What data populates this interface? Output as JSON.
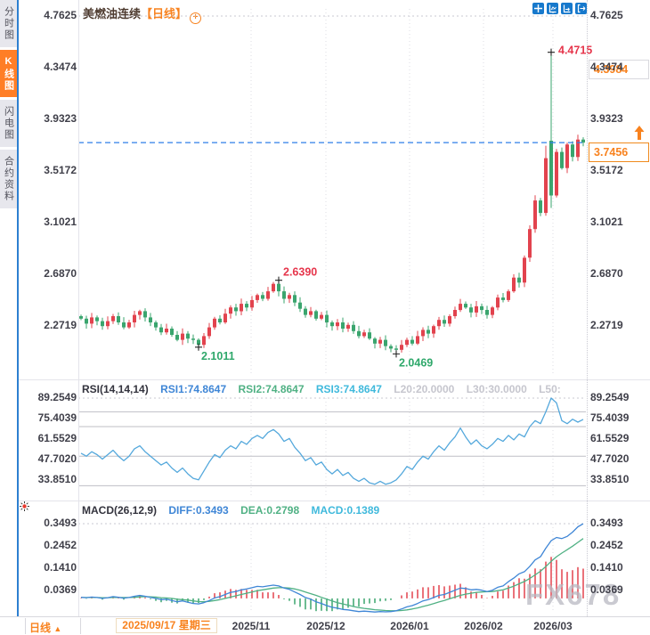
{
  "header": {
    "symbol": "美燃油连续",
    "period": "【日线】",
    "add_indicator": "+"
  },
  "sidebar": {
    "tabs": [
      {
        "label": "分时图",
        "active": false
      },
      {
        "label": "K线图",
        "active": true
      },
      {
        "label": "闪电图",
        "active": false
      },
      {
        "label": "合约资料",
        "active": false
      }
    ]
  },
  "toolbar": {
    "icons": [
      "crosshair-pan",
      "box-zoom",
      "box-zoom-arrow",
      "exit-chart"
    ]
  },
  "colors": {
    "up": "#e2434e",
    "down": "#3aa56e",
    "accent_orange": "#f8821e",
    "icon_blue": "#1779cc",
    "rsi_line": "#54a8dc",
    "diff_blue": "#3f86d6",
    "dea_green": "#50b184",
    "macd_cyan": "#3fb9dc",
    "muted": "#c6c6ce",
    "axis_text": "#3f3f49",
    "grid": "#bfbfc6",
    "dashed_price_line": "#2f7fe8",
    "red_label": "#e6354b",
    "green_label": "#2fa86b"
  },
  "right_axis": {
    "ref_price": "4.3984",
    "last_price": "3.7456"
  },
  "rsi_header": {
    "name": "RSI(14,14,14)",
    "rsi1": "RSI1:74.8647",
    "rsi2": "RSI2:74.8647",
    "rsi3": "RSI3:74.8647",
    "l20": "L20:20.0000",
    "l30": "L30:30.0000",
    "l50": "L50:"
  },
  "macd_header": {
    "name": "MACD(26,12,9)",
    "diff": "DIFF:0.3493",
    "dea": "DEA:0.2798",
    "macd": "MACD:0.1389"
  },
  "bottom_bar": {
    "period": "日线",
    "dropdown_arrow": "▲",
    "crosshair_date": "2025/09/17 星期三",
    "months": [
      {
        "label": "2025/11",
        "x": 282
      },
      {
        "label": "2025/12",
        "x": 366
      },
      {
        "label": "2026/01",
        "x": 460
      },
      {
        "label": "2026/02",
        "x": 543
      },
      {
        "label": "2026/03",
        "x": 621
      }
    ]
  },
  "watermark": "FX678",
  "chart_data": [
    {
      "type": "candlestick",
      "title": "美燃油连续 日线",
      "y_ticks": [
        4.7625,
        4.3474,
        3.9323,
        3.5172,
        3.1021,
        2.687,
        2.2719
      ],
      "ylim": [
        1.95,
        4.82
      ],
      "x_ticks": [
        "2025/11",
        "2025/12",
        "2026/01",
        "2026/02",
        "2026/03"
      ],
      "last_price": 3.7456,
      "ref_price": 4.3984,
      "first_open": 2.35,
      "closes": [
        2.33,
        2.29,
        2.34,
        2.31,
        2.27,
        2.31,
        2.35,
        2.3,
        2.26,
        2.3,
        2.36,
        2.39,
        2.34,
        2.3,
        2.26,
        2.22,
        2.25,
        2.2,
        2.16,
        2.21,
        2.17,
        2.16,
        2.12,
        2.19,
        2.26,
        2.33,
        2.3,
        2.37,
        2.42,
        2.39,
        2.45,
        2.42,
        2.48,
        2.52,
        2.49,
        2.55,
        2.61,
        2.55,
        2.49,
        2.52,
        2.46,
        2.41,
        2.36,
        2.39,
        2.33,
        2.36,
        2.3,
        2.27,
        2.3,
        2.25,
        2.28,
        2.23,
        2.19,
        2.22,
        2.17,
        2.13,
        2.16,
        2.11,
        2.09,
        2.08,
        2.12,
        2.16,
        2.13,
        2.19,
        2.24,
        2.21,
        2.27,
        2.32,
        2.29,
        2.35,
        2.4,
        2.45,
        2.42,
        2.38,
        2.43,
        2.4,
        2.36,
        2.42,
        2.5,
        2.48,
        2.55,
        2.66,
        2.62,
        2.82,
        3.05,
        3.28,
        3.18,
        3.62,
        3.32,
        3.67,
        3.54,
        3.73,
        3.63,
        3.77,
        3.7456
      ],
      "overrides": {
        "22": {
          "l": 2.1011
        },
        "37": {
          "h": 2.639
        },
        "59": {
          "l": 2.0469
        },
        "87": {
          "h": 3.72
        },
        "88": {
          "o": 3.76,
          "h": 4.4715,
          "l": 3.22
        }
      },
      "markers": [
        {
          "text": "4.4715",
          "i": 88,
          "v": 4.4715,
          "pos": "right",
          "color": "red_label"
        },
        {
          "text": "2.6390",
          "i": 37,
          "v": 2.639,
          "pos": "above",
          "color": "red_label"
        },
        {
          "text": "2.1011",
          "i": 22,
          "v": 2.1011,
          "pos": "below",
          "color": "green_label"
        },
        {
          "text": "2.0469",
          "i": 59,
          "v": 2.0469,
          "pos": "below",
          "color": "green_label"
        }
      ]
    },
    {
      "type": "line",
      "title": "RSI(14,14,14)",
      "y_ticks": [
        89.2549,
        75.4039,
        61.5529,
        47.702,
        33.851
      ],
      "ref_lines": [
        80,
        70,
        50,
        30
      ],
      "series": [
        {
          "name": "RSI1",
          "values": [
            52,
            50,
            53,
            51,
            48,
            51,
            54,
            50,
            47,
            50,
            55,
            57,
            53,
            50,
            47,
            44,
            46,
            42,
            39,
            42,
            38,
            35,
            34,
            40,
            46,
            51,
            49,
            54,
            57,
            55,
            60,
            58,
            62,
            64,
            62,
            66,
            68,
            65,
            60,
            62,
            56,
            52,
            47,
            49,
            44,
            46,
            41,
            38,
            41,
            37,
            39,
            35,
            33,
            35,
            32,
            31,
            33,
            31,
            32,
            34,
            38,
            43,
            41,
            46,
            50,
            48,
            53,
            57,
            54,
            59,
            63,
            69,
            63,
            58,
            61,
            57,
            55,
            58,
            62,
            60,
            64,
            61,
            65,
            63,
            70,
            74,
            72,
            80,
            89.25,
            86,
            74,
            72,
            75,
            73,
            74.86
          ]
        }
      ]
    },
    {
      "type": "macd",
      "title": "MACD(26,12,9)",
      "y_ticks": [
        0.3493,
        0.2452,
        0.141,
        0.0369
      ],
      "series": [
        {
          "name": "DIFF",
          "values": [
            0.005,
            0.003,
            0.006,
            0.004,
            0.0,
            0.003,
            0.008,
            0.005,
            0.001,
            0.004,
            0.01,
            0.014,
            0.01,
            0.005,
            0.0,
            -0.006,
            -0.004,
            -0.01,
            -0.016,
            -0.012,
            -0.018,
            -0.024,
            -0.026,
            -0.02,
            -0.01,
            0.002,
            0.008,
            0.018,
            0.028,
            0.032,
            0.04,
            0.044,
            0.05,
            0.056,
            0.054,
            0.058,
            0.062,
            0.058,
            0.048,
            0.042,
            0.03,
            0.018,
            0.004,
            -0.004,
            -0.016,
            -0.024,
            -0.034,
            -0.042,
            -0.046,
            -0.052,
            -0.054,
            -0.058,
            -0.062,
            -0.06,
            -0.062,
            -0.064,
            -0.062,
            -0.063,
            -0.062,
            -0.058,
            -0.05,
            -0.04,
            -0.034,
            -0.024,
            -0.012,
            -0.006,
            0.004,
            0.014,
            0.018,
            0.028,
            0.038,
            0.048,
            0.046,
            0.04,
            0.042,
            0.038,
            0.032,
            0.038,
            0.052,
            0.058,
            0.078,
            0.095,
            0.115,
            0.125,
            0.15,
            0.18,
            0.195,
            0.235,
            0.27,
            0.285,
            0.28,
            0.29,
            0.31,
            0.335,
            0.3493
          ]
        },
        {
          "name": "DEA",
          "values": [
            0.004,
            0.004,
            0.004,
            0.004,
            0.003,
            0.003,
            0.004,
            0.004,
            0.004,
            0.004,
            0.005,
            0.007,
            0.008,
            0.007,
            0.006,
            0.003,
            0.002,
            0.0,
            -0.004,
            -0.006,
            -0.008,
            -0.012,
            -0.015,
            -0.016,
            -0.014,
            -0.01,
            -0.006,
            0.0,
            0.006,
            0.012,
            0.018,
            0.024,
            0.03,
            0.036,
            0.04,
            0.044,
            0.048,
            0.05,
            0.05,
            0.048,
            0.044,
            0.038,
            0.03,
            0.022,
            0.014,
            0.005,
            -0.004,
            -0.012,
            -0.02,
            -0.026,
            -0.032,
            -0.038,
            -0.043,
            -0.047,
            -0.05,
            -0.053,
            -0.055,
            -0.057,
            -0.058,
            -0.058,
            -0.057,
            -0.054,
            -0.05,
            -0.045,
            -0.038,
            -0.032,
            -0.025,
            -0.017,
            -0.01,
            -0.002,
            0.006,
            0.014,
            0.02,
            0.024,
            0.028,
            0.03,
            0.031,
            0.032,
            0.036,
            0.04,
            0.048,
            0.057,
            0.068,
            0.079,
            0.093,
            0.11,
            0.127,
            0.149,
            0.173,
            0.195,
            0.212,
            0.228,
            0.244,
            0.262,
            0.2798
          ]
        }
      ],
      "hist_rule": "MACD = 2*(DIFF-DEA)"
    }
  ]
}
